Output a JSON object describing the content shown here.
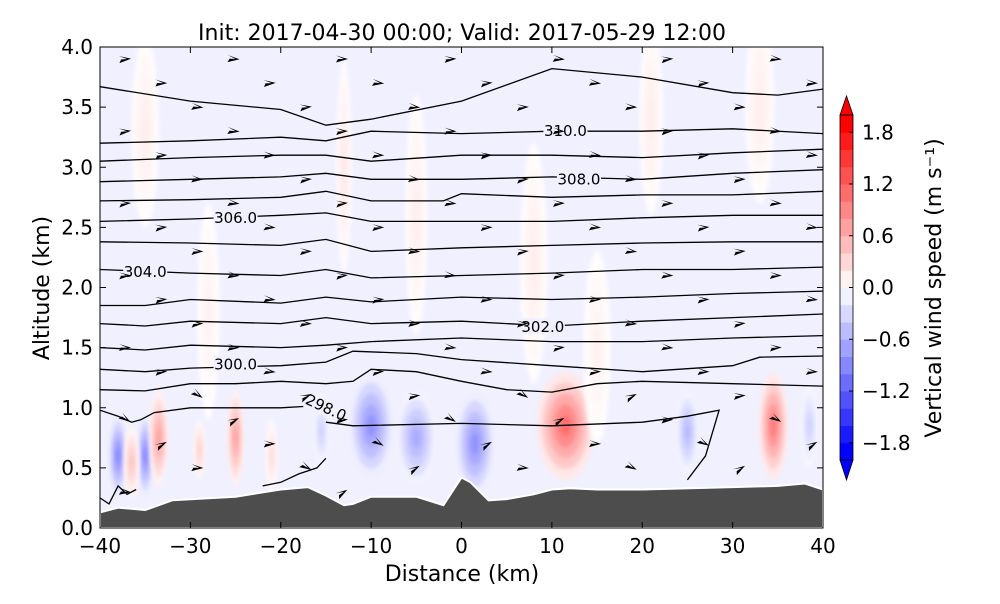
{
  "chart_data": {
    "type": "contour",
    "title": "Init: 2017-04-30 00:00; Valid: 2017-05-29 12:00",
    "xlabel": "Distance (km)",
    "ylabel": "Altitude (km)",
    "xlim": [
      -40,
      40
    ],
    "ylim": [
      0,
      4
    ],
    "xticks": [
      "−40",
      "−30",
      "−20",
      "−10",
      "0",
      "10",
      "20",
      "30",
      "40"
    ],
    "xtick_values": [
      -40,
      -30,
      -20,
      -10,
      0,
      10,
      20,
      30,
      40
    ],
    "yticks": [
      "0.0",
      "0.5",
      "1.0",
      "1.5",
      "2.0",
      "2.5",
      "3.0",
      "3.5",
      "4.0"
    ],
    "ytick_values": [
      0,
      0.5,
      1,
      1.5,
      2,
      2.5,
      3,
      3.5,
      4
    ],
    "colorbar": {
      "label": "Vertical wind speed (m s⁻¹)",
      "range": [
        -2.0,
        2.0
      ],
      "step": 0.2,
      "ticks": [
        "1.8",
        "1.2",
        "0.6",
        "0.0",
        "−0.6",
        "−1.2",
        "−1.8"
      ],
      "tick_values": [
        1.8,
        1.2,
        0.6,
        0.0,
        -0.6,
        -1.2,
        -1.8
      ],
      "extend": "both",
      "positive_color": "#ff0000",
      "negative_color": "#0000ff"
    },
    "terrain": {
      "color": "#4d4d4d",
      "points": [
        [
          -40,
          0.13
        ],
        [
          -38,
          0.17
        ],
        [
          -35,
          0.15
        ],
        [
          -32,
          0.23
        ],
        [
          -25,
          0.26
        ],
        [
          -20,
          0.32
        ],
        [
          -17,
          0.34
        ],
        [
          -15,
          0.27
        ],
        [
          -13,
          0.19
        ],
        [
          -12,
          0.2
        ],
        [
          -10,
          0.26
        ],
        [
          -5,
          0.26
        ],
        [
          -2,
          0.19
        ],
        [
          0,
          0.42
        ],
        [
          1,
          0.38
        ],
        [
          3,
          0.23
        ],
        [
          5,
          0.24
        ],
        [
          8,
          0.28
        ],
        [
          10,
          0.32
        ],
        [
          12,
          0.33
        ],
        [
          15,
          0.32
        ],
        [
          20,
          0.32
        ],
        [
          30,
          0.34
        ],
        [
          35,
          0.35
        ],
        [
          38,
          0.37
        ],
        [
          40,
          0.32
        ]
      ]
    },
    "w_features": [
      {
        "x": -38,
        "z": 0.6,
        "w": -1.0,
        "dx": 1.0,
        "dz": 0.35
      },
      {
        "x": -35,
        "z": 0.6,
        "w": -1.0,
        "dx": 0.9,
        "dz": 0.35
      },
      {
        "x": -36.5,
        "z": 0.55,
        "w": 0.5,
        "dx": 0.8,
        "dz": 0.3
      },
      {
        "x": -33.5,
        "z": 0.75,
        "w": 0.8,
        "dx": 1.0,
        "dz": 0.4
      },
      {
        "x": -29,
        "z": 0.65,
        "w": 0.4,
        "dx": 0.6,
        "dz": 0.25
      },
      {
        "x": -25,
        "z": 0.75,
        "w": 0.8,
        "dx": 0.9,
        "dz": 0.4
      },
      {
        "x": -21,
        "z": 0.6,
        "w": 0.3,
        "dx": 0.6,
        "dz": 0.3
      },
      {
        "x": -15.5,
        "z": 0.8,
        "w": -0.4,
        "dx": 0.8,
        "dz": 0.3
      },
      {
        "x": -10,
        "z": 0.85,
        "w": -0.9,
        "dx": 2.5,
        "dz": 0.45
      },
      {
        "x": -5,
        "z": 0.75,
        "w": -0.7,
        "dx": 2.2,
        "dz": 0.4
      },
      {
        "x": 1.5,
        "z": 0.7,
        "w": -0.9,
        "dx": 2.2,
        "dz": 0.45
      },
      {
        "x": 11.5,
        "z": 0.85,
        "w": 1.2,
        "dx": 3.2,
        "dz": 0.45
      },
      {
        "x": 25,
        "z": 0.8,
        "w": -0.6,
        "dx": 1.2,
        "dz": 0.35
      },
      {
        "x": 34.5,
        "z": 0.85,
        "w": 1.1,
        "dx": 1.6,
        "dz": 0.45
      },
      {
        "x": 38.5,
        "z": 0.85,
        "w": -0.4,
        "dx": 0.9,
        "dz": 0.35
      },
      {
        "x": -35,
        "z": 3.3,
        "w": 0.15,
        "dx": 1.5,
        "dz": 0.8
      },
      {
        "x": -13,
        "z": 3.0,
        "w": 0.2,
        "dx": 0.8,
        "dz": 0.9
      },
      {
        "x": -5,
        "z": 2.6,
        "w": 0.15,
        "dx": 1.2,
        "dz": 1.0
      },
      {
        "x": 8,
        "z": 2.2,
        "w": 0.15,
        "dx": 1.5,
        "dz": 1.0
      },
      {
        "x": 21,
        "z": 3.4,
        "w": 0.15,
        "dx": 1.3,
        "dz": 0.8
      },
      {
        "x": 33,
        "z": 3.5,
        "w": 0.15,
        "dx": 1.6,
        "dz": 0.8
      },
      {
        "x": -28,
        "z": 1.8,
        "w": 0.12,
        "dx": 1.2,
        "dz": 0.9
      },
      {
        "x": 15,
        "z": 1.5,
        "w": 0.12,
        "dx": 1.5,
        "dz": 0.8
      }
    ],
    "theta_contours": [
      {
        "level": 298.0,
        "label": "298.0",
        "label_at": [
          -15,
          1.0
        ],
        "points": [
          [
            -40,
            0.98
          ],
          [
            -38,
            0.93
          ],
          [
            -36.5,
            0.88
          ],
          [
            -35.5,
            0.9
          ],
          [
            -34,
            0.96
          ],
          [
            -30,
            1.0
          ],
          [
            -25,
            1.0
          ],
          [
            -20,
            1.0
          ],
          [
            -17.5,
            1.01
          ]
        ]
      },
      {
        "level": 298.0,
        "label": "",
        "points": [
          [
            -40,
            0.25
          ],
          [
            -39,
            0.2
          ],
          [
            -38,
            0.35
          ],
          [
            -37,
            0.28
          ],
          [
            -36,
            0.32
          ]
        ]
      },
      {
        "level": 298.0,
        "label": "",
        "points": [
          [
            -22,
            0.35
          ],
          [
            -20,
            0.38
          ],
          [
            -18,
            0.45
          ],
          [
            -16,
            0.5
          ],
          [
            -15,
            0.58
          ]
        ]
      },
      {
        "level": 298.0,
        "label": "",
        "points": [
          [
            -15,
            0.88
          ],
          [
            -12,
            0.85
          ],
          [
            0,
            0.87
          ],
          [
            10,
            0.85
          ],
          [
            20,
            0.88
          ],
          [
            25,
            0.93
          ],
          [
            28.5,
            0.98
          ],
          [
            27,
            0.6
          ],
          [
            25,
            0.4
          ]
        ]
      },
      {
        "level": 299.0,
        "label": "",
        "points": [
          [
            -40,
            1.15
          ],
          [
            -35,
            1.14
          ],
          [
            -30,
            1.2
          ],
          [
            -25,
            1.2
          ],
          [
            -20,
            1.22
          ],
          [
            -15,
            1.2
          ],
          [
            -12,
            1.22
          ],
          [
            -10,
            1.32
          ],
          [
            -5,
            1.3
          ],
          [
            0,
            1.22
          ],
          [
            5,
            1.15
          ],
          [
            10,
            1.13
          ],
          [
            15,
            1.2
          ],
          [
            20,
            1.22
          ],
          [
            30,
            1.2
          ],
          [
            40,
            1.18
          ]
        ]
      },
      {
        "level": 300.0,
        "label": "300.0",
        "label_at": [
          -25,
          1.36
        ],
        "points": [
          [
            -40,
            1.32
          ],
          [
            -35,
            1.3
          ],
          [
            -30,
            1.33
          ],
          [
            -20,
            1.35
          ],
          [
            -15,
            1.38
          ],
          [
            -12,
            1.47
          ],
          [
            -5,
            1.45
          ],
          [
            0,
            1.4
          ],
          [
            10,
            1.35
          ],
          [
            20,
            1.3
          ],
          [
            30,
            1.35
          ],
          [
            33,
            1.42
          ],
          [
            40,
            1.43
          ]
        ]
      },
      {
        "level": 301.0,
        "label": "",
        "points": [
          [
            -40,
            1.5
          ],
          [
            -35,
            1.48
          ],
          [
            -30,
            1.52
          ],
          [
            -20,
            1.5
          ],
          [
            -15,
            1.52
          ],
          [
            -10,
            1.55
          ],
          [
            0,
            1.58
          ],
          [
            10,
            1.55
          ],
          [
            20,
            1.55
          ],
          [
            30,
            1.58
          ],
          [
            40,
            1.6
          ]
        ]
      },
      {
        "level": 302.0,
        "label": "302.0",
        "label_at": [
          9,
          1.67
        ],
        "points": [
          [
            -40,
            1.7
          ],
          [
            -35,
            1.68
          ],
          [
            -30,
            1.72
          ],
          [
            -20,
            1.7
          ],
          [
            -15,
            1.75
          ],
          [
            -10,
            1.7
          ],
          [
            0,
            1.72
          ],
          [
            10,
            1.68
          ],
          [
            20,
            1.72
          ],
          [
            30,
            1.75
          ],
          [
            40,
            1.78
          ]
        ]
      },
      {
        "level": 303.0,
        "label": "",
        "points": [
          [
            -40,
            1.85
          ],
          [
            -35,
            1.85
          ],
          [
            -30,
            1.9
          ],
          [
            -20,
            1.87
          ],
          [
            -15,
            1.92
          ],
          [
            -10,
            1.88
          ],
          [
            0,
            1.92
          ],
          [
            10,
            1.9
          ],
          [
            20,
            1.92
          ],
          [
            30,
            1.95
          ],
          [
            40,
            1.97
          ]
        ]
      },
      {
        "level": 304.0,
        "label": "304.0",
        "label_at": [
          -35,
          2.13
        ],
        "points": [
          [
            -40,
            2.15
          ],
          [
            -30,
            2.12
          ],
          [
            -20,
            2.1
          ],
          [
            -15,
            2.15
          ],
          [
            -10,
            2.08
          ],
          [
            0,
            2.1
          ],
          [
            10,
            2.12
          ],
          [
            20,
            2.15
          ],
          [
            30,
            2.15
          ],
          [
            40,
            2.17
          ]
        ]
      },
      {
        "level": 305.0,
        "label": "",
        "points": [
          [
            -40,
            2.38
          ],
          [
            -30,
            2.37
          ],
          [
            -20,
            2.35
          ],
          [
            -15,
            2.4
          ],
          [
            -10,
            2.3
          ],
          [
            0,
            2.33
          ],
          [
            10,
            2.35
          ],
          [
            20,
            2.37
          ],
          [
            30,
            2.38
          ],
          [
            40,
            2.38
          ]
        ]
      },
      {
        "level": 306.0,
        "label": "306.0",
        "label_at": [
          -25,
          2.58
        ],
        "points": [
          [
            -40,
            2.55
          ],
          [
            -30,
            2.57
          ],
          [
            -20,
            2.6
          ],
          [
            -15,
            2.62
          ],
          [
            -10,
            2.55
          ],
          [
            0,
            2.55
          ],
          [
            10,
            2.55
          ],
          [
            20,
            2.58
          ],
          [
            30,
            2.6
          ],
          [
            40,
            2.6
          ]
        ]
      },
      {
        "level": 307.0,
        "label": "",
        "points": [
          [
            -40,
            2.72
          ],
          [
            -30,
            2.73
          ],
          [
            -20,
            2.75
          ],
          [
            -15,
            2.8
          ],
          [
            -10,
            2.72
          ],
          [
            -2,
            2.72
          ],
          [
            0,
            2.78
          ],
          [
            10,
            2.75
          ],
          [
            20,
            2.77
          ],
          [
            30,
            2.77
          ],
          [
            40,
            2.8
          ]
        ]
      },
      {
        "level": 308.0,
        "label": "308.0",
        "label_at": [
          13,
          2.9
        ],
        "points": [
          [
            -40,
            2.88
          ],
          [
            -30,
            2.9
          ],
          [
            -20,
            2.92
          ],
          [
            -15,
            2.95
          ],
          [
            -10,
            2.9
          ],
          [
            0,
            2.9
          ],
          [
            10,
            2.92
          ],
          [
            20,
            2.9
          ],
          [
            30,
            2.95
          ],
          [
            40,
            2.98
          ]
        ]
      },
      {
        "level": 309.0,
        "label": "",
        "points": [
          [
            -40,
            3.05
          ],
          [
            -30,
            3.08
          ],
          [
            -20,
            3.1
          ],
          [
            -15,
            3.1
          ],
          [
            -10,
            3.05
          ],
          [
            0,
            3.1
          ],
          [
            10,
            3.1
          ],
          [
            20,
            3.08
          ],
          [
            30,
            3.12
          ],
          [
            40,
            3.15
          ]
        ]
      },
      {
        "level": 310.0,
        "label": "310.0",
        "label_at": [
          11.5,
          3.3
        ],
        "points": [
          [
            -40,
            3.2
          ],
          [
            -30,
            3.22
          ],
          [
            -20,
            3.25
          ],
          [
            -15,
            3.22
          ],
          [
            -10,
            3.3
          ],
          [
            0,
            3.28
          ],
          [
            10,
            3.3
          ],
          [
            20,
            3.3
          ],
          [
            30,
            3.32
          ],
          [
            40,
            3.28
          ]
        ]
      },
      {
        "level": 311.0,
        "label": "",
        "points": [
          [
            -40,
            3.67
          ],
          [
            -30,
            3.55
          ],
          [
            -20,
            3.48
          ],
          [
            -15,
            3.35
          ],
          [
            -10,
            3.4
          ],
          [
            0,
            3.55
          ],
          [
            10,
            3.82
          ],
          [
            20,
            3.75
          ],
          [
            30,
            3.62
          ],
          [
            35,
            3.6
          ],
          [
            40,
            3.65
          ]
        ]
      }
    ]
  }
}
